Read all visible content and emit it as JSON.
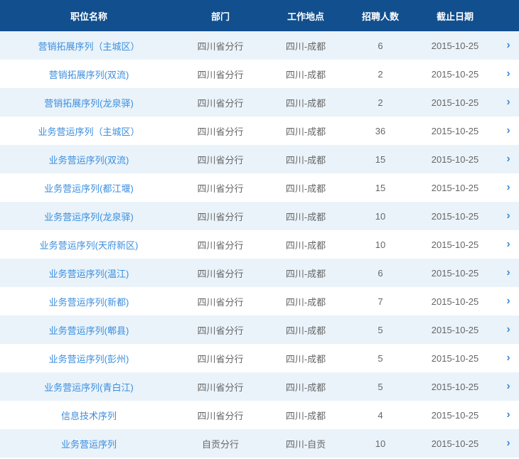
{
  "header": {
    "name": "职位名称",
    "dept": "部门",
    "location": "工作地点",
    "count": "招聘人数",
    "date": "截止日期"
  },
  "rows": [
    {
      "name": "营销拓展序列（主城区）",
      "dept": "四川省分行",
      "location": "四川-成都",
      "count": "6",
      "date": "2015-10-25"
    },
    {
      "name": "营销拓展序列(双流)",
      "dept": "四川省分行",
      "location": "四川-成都",
      "count": "2",
      "date": "2015-10-25"
    },
    {
      "name": "营销拓展序列(龙泉驿)",
      "dept": "四川省分行",
      "location": "四川-成都",
      "count": "2",
      "date": "2015-10-25"
    },
    {
      "name": "业务营运序列（主城区）",
      "dept": "四川省分行",
      "location": "四川-成都",
      "count": "36",
      "date": "2015-10-25"
    },
    {
      "name": "业务营运序列(双流)",
      "dept": "四川省分行",
      "location": "四川-成都",
      "count": "15",
      "date": "2015-10-25"
    },
    {
      "name": "业务营运序列(都江堰)",
      "dept": "四川省分行",
      "location": "四川-成都",
      "count": "15",
      "date": "2015-10-25"
    },
    {
      "name": "业务营运序列(龙泉驿)",
      "dept": "四川省分行",
      "location": "四川-成都",
      "count": "10",
      "date": "2015-10-25"
    },
    {
      "name": "业务营运序列(天府新区)",
      "dept": "四川省分行",
      "location": "四川-成都",
      "count": "10",
      "date": "2015-10-25"
    },
    {
      "name": "业务营运序列(温江)",
      "dept": "四川省分行",
      "location": "四川-成都",
      "count": "6",
      "date": "2015-10-25"
    },
    {
      "name": "业务营运序列(新都)",
      "dept": "四川省分行",
      "location": "四川-成都",
      "count": "7",
      "date": "2015-10-25"
    },
    {
      "name": "业务营运序列(郫县)",
      "dept": "四川省分行",
      "location": "四川-成都",
      "count": "5",
      "date": "2015-10-25"
    },
    {
      "name": "业务营运序列(彭州)",
      "dept": "四川省分行",
      "location": "四川-成都",
      "count": "5",
      "date": "2015-10-25"
    },
    {
      "name": "业务营运序列(青白江)",
      "dept": "四川省分行",
      "location": "四川-成都",
      "count": "5",
      "date": "2015-10-25"
    },
    {
      "name": "信息技术序列",
      "dept": "四川省分行",
      "location": "四川-成都",
      "count": "4",
      "date": "2015-10-25"
    },
    {
      "name": "业务营运序列",
      "dept": "自贡分行",
      "location": "四川-自贡",
      "count": "10",
      "date": "2015-10-25"
    }
  ],
  "colors": {
    "header_bg": "#114f8e",
    "header_text": "#ffffff",
    "row_alt_bg": "#eaf3fa",
    "link_color": "#3b8ede",
    "text_color": "#666666"
  }
}
